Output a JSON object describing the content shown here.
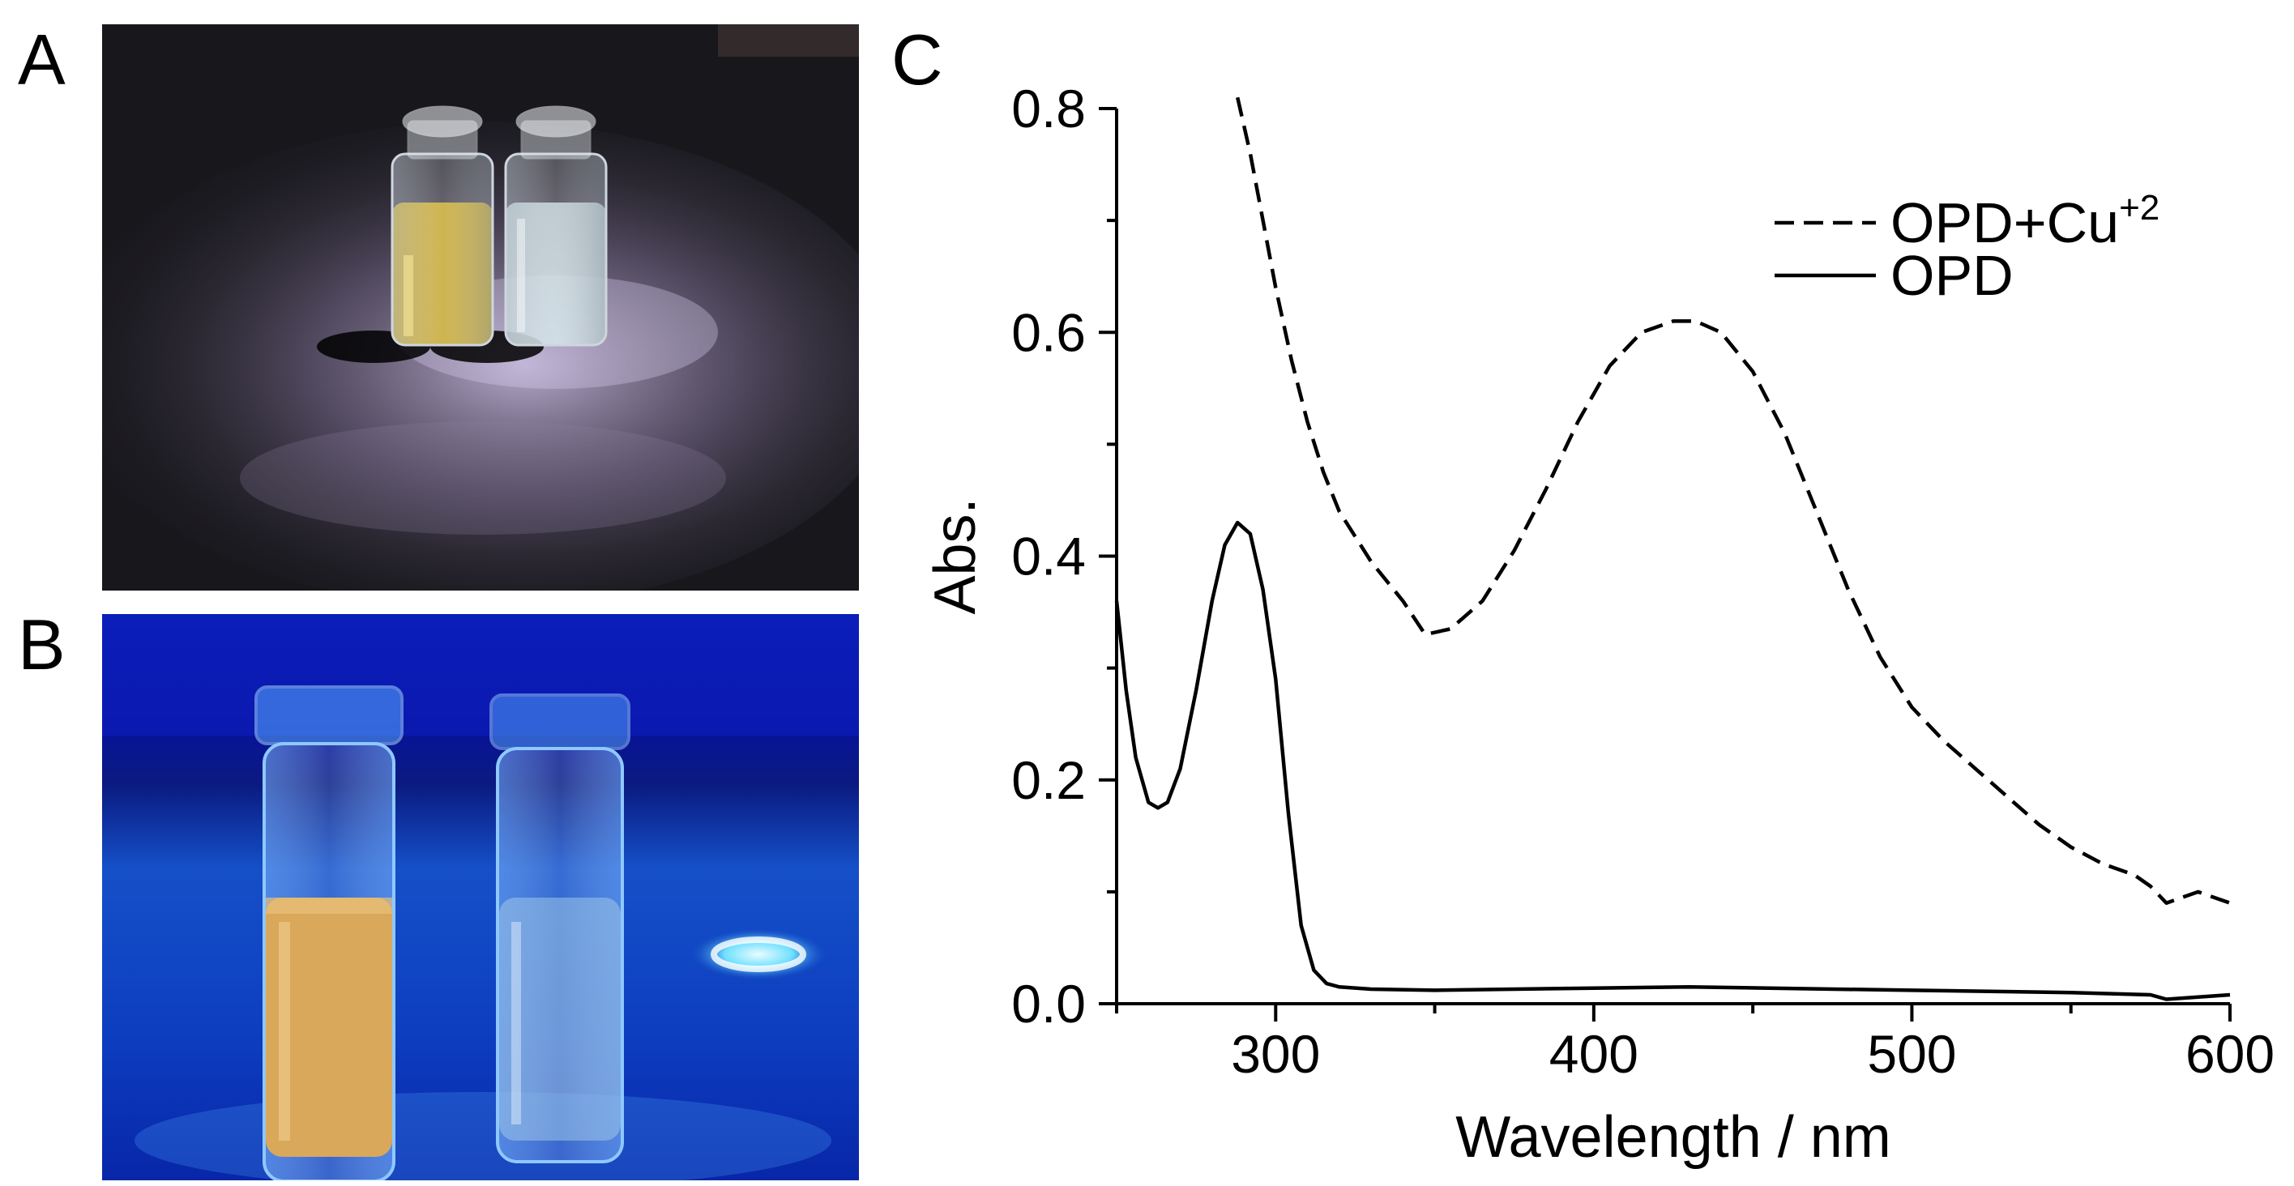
{
  "panels": {
    "a": {
      "letter": "A"
    },
    "b": {
      "letter": "B"
    },
    "c": {
      "letter": "C"
    }
  },
  "photos": {
    "a": {
      "description_icon": "vials-under-white-light",
      "left_vial_color": "#c7a21a",
      "right_vial_color": "#cfe3e6"
    },
    "b": {
      "description_icon": "vials-under-uv-light",
      "left_vial_color": "#d9a85a",
      "right_vial_color": "#9fc7e6"
    }
  },
  "chart_data": {
    "type": "line",
    "xlabel": "Wavelength / nm",
    "ylabel": "Abs.",
    "xlim": [
      250,
      600
    ],
    "ylim": [
      0.0,
      0.8
    ],
    "xticks": [
      "300",
      "400",
      "500",
      "600"
    ],
    "yticks": [
      "0.0",
      "0.2",
      "0.4",
      "0.6",
      "0.8"
    ],
    "legend_position": "top-right",
    "series": [
      {
        "name": "OPD+Cu",
        "name_superscript": "+2",
        "style": "dashed",
        "x": [
          288,
          292,
          296,
          300,
          305,
          310,
          315,
          320,
          330,
          340,
          347,
          355,
          365,
          375,
          385,
          395,
          405,
          415,
          425,
          432,
          440,
          450,
          460,
          470,
          480,
          490,
          500,
          510,
          520,
          530,
          540,
          550,
          560,
          570,
          575,
          580,
          590,
          600
        ],
        "values": [
          0.81,
          0.76,
          0.7,
          0.64,
          0.575,
          0.52,
          0.475,
          0.44,
          0.395,
          0.36,
          0.33,
          0.335,
          0.36,
          0.405,
          0.46,
          0.52,
          0.57,
          0.6,
          0.61,
          0.61,
          0.6,
          0.565,
          0.51,
          0.44,
          0.37,
          0.31,
          0.265,
          0.235,
          0.21,
          0.185,
          0.16,
          0.14,
          0.125,
          0.115,
          0.105,
          0.09,
          0.1,
          0.09
        ]
      },
      {
        "name": "OPD",
        "style": "solid",
        "x": [
          250,
          253,
          256,
          260,
          263,
          266,
          270,
          275,
          280,
          284,
          288,
          292,
          296,
          300,
          304,
          308,
          312,
          316,
          320,
          330,
          350,
          400,
          430,
          500,
          550,
          575,
          580,
          600
        ],
        "values": [
          0.36,
          0.28,
          0.22,
          0.18,
          0.175,
          0.18,
          0.21,
          0.28,
          0.36,
          0.41,
          0.43,
          0.42,
          0.37,
          0.29,
          0.17,
          0.07,
          0.03,
          0.018,
          0.015,
          0.013,
          0.012,
          0.014,
          0.015,
          0.012,
          0.01,
          0.008,
          0.004,
          0.008
        ]
      }
    ]
  }
}
